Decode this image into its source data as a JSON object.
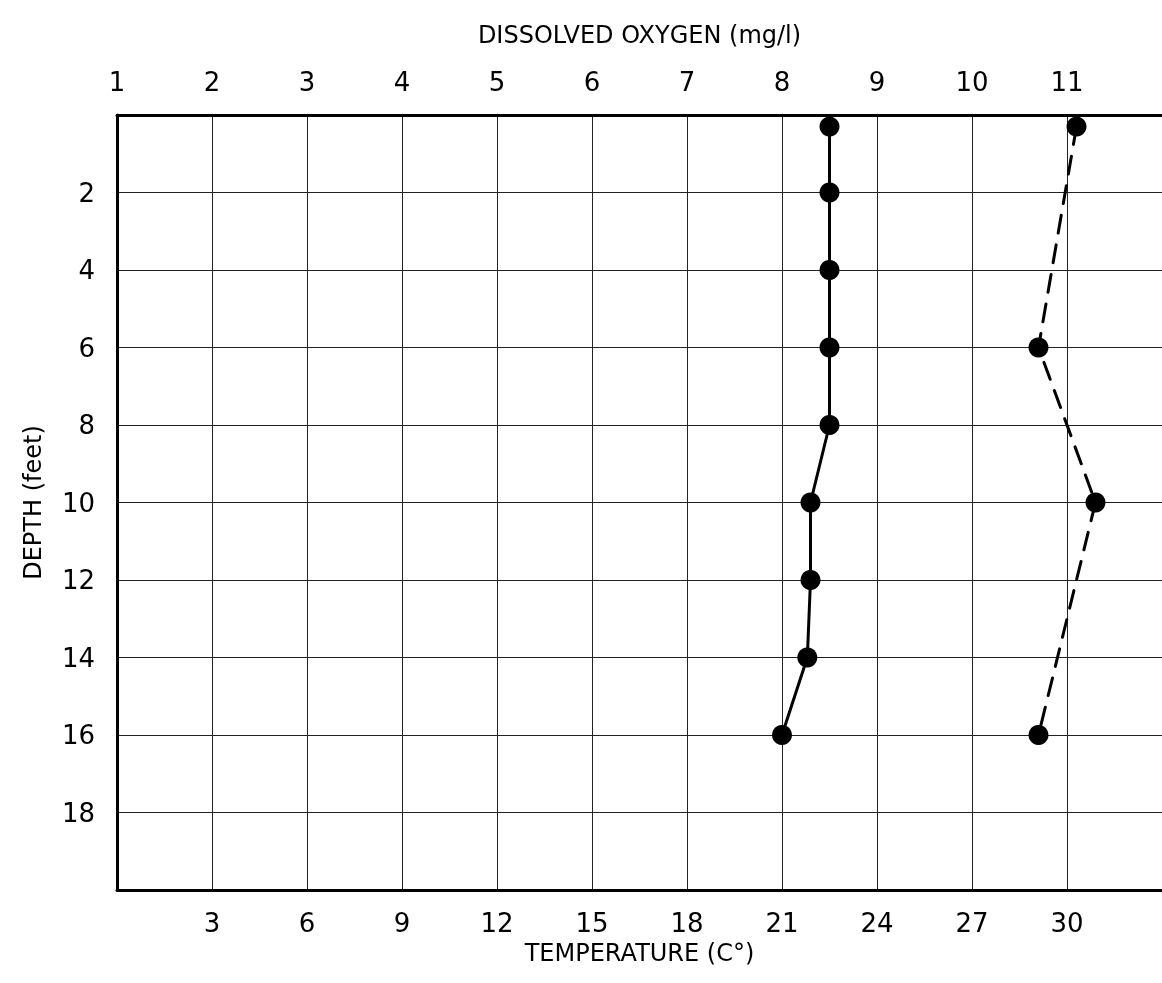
{
  "chart_data": {
    "type": "line",
    "xlabel": "TEMPERATURE (C°)",
    "x2label": "DISSOLVED OXYGEN (mg/l)",
    "ylabel": "DEPTH (feet)",
    "xlim": [
      0,
      33
    ],
    "xticks": [
      3,
      6,
      9,
      12,
      15,
      18,
      21,
      24,
      27,
      30
    ],
    "x2lim": [
      1,
      12
    ],
    "x2ticks": [
      1,
      2,
      3,
      4,
      5,
      6,
      7,
      8,
      9,
      10,
      11
    ],
    "ylim": [
      20,
      0
    ],
    "yticks": [
      2,
      4,
      6,
      8,
      10,
      12,
      14,
      16,
      18
    ],
    "grid": true,
    "marker": "circle",
    "series": [
      {
        "color": "#000000",
        "line_style": "solid",
        "x": [
          22.5,
          22.5,
          22.5,
          22.5,
          22.5,
          21.9,
          21.9,
          21.8,
          21.0
        ],
        "values": [
          0.3,
          2,
          4,
          6,
          8,
          10,
          12,
          14,
          16
        ]
      },
      {
        "color": "#000000",
        "line_style": "dashed",
        "axis": "x2",
        "x": [
          11.1,
          10.7,
          11.3,
          10.7
        ],
        "values": [
          0.3,
          6,
          10,
          16
        ]
      }
    ]
  }
}
